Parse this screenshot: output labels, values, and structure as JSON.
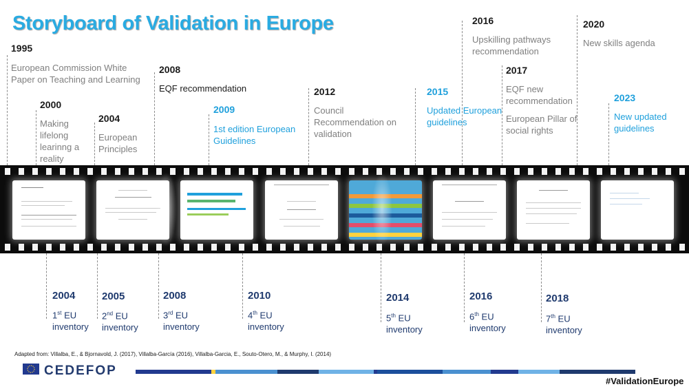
{
  "title": "Storyboard of Validation in Europe",
  "top_events": [
    {
      "year": "1995",
      "text": "European Commission White Paper on Teaching and Learning"
    },
    {
      "year": "2000",
      "text": "Making lifelong learinng a reality"
    },
    {
      "year": "2004",
      "text": "European Principles"
    },
    {
      "year": "2008",
      "text": "EQF recommendation"
    },
    {
      "year": "2009",
      "text": "1st edition European Guidelines"
    },
    {
      "year": "2012",
      "text": "Council Recommendation on validation"
    },
    {
      "year": "2015",
      "text": "Updated European guidelines"
    },
    {
      "year": "2016",
      "text": "Upskilling pathways recommendation"
    },
    {
      "year": "2017",
      "text": "EQF new recommendation",
      "text2": "European Pillar of social rights"
    },
    {
      "year": "2020",
      "text": "New skills agenda"
    },
    {
      "year": "2023",
      "text": "New updated guidelines"
    }
  ],
  "inventories": [
    {
      "year": "2004",
      "ord": "1",
      "sup": "st",
      "label": "EU",
      "line2": "inventory"
    },
    {
      "year": "2005",
      "ord": "2",
      "sup": "nd",
      "label": "EU",
      "line2": "inventory"
    },
    {
      "year": "2008",
      "ord": "3",
      "sup": "rd",
      "label": "EU",
      "line2": "inventory"
    },
    {
      "year": "2010",
      "ord": "4",
      "sup": "th",
      "label": "EU",
      "line2": "inventory"
    },
    {
      "year": "2014",
      "ord": "5",
      "sup": "th",
      "label": "EU",
      "line2": "inventory"
    },
    {
      "year": "2016",
      "ord": "6",
      "sup": "th",
      "label": "EU",
      "line2": "inventory"
    },
    {
      "year": "2018",
      "ord": "7",
      "sup": "th",
      "label": "EU",
      "line2": "inventory"
    }
  ],
  "footer": {
    "source": "Adapted from: Villalba, E., & Bjornavold, J. (2017), Villalba-García (2016), Villalba-Garcia, E., Souto-Otero, M., & Murphy, I. (2014)",
    "logo": "CEDEFOP",
    "hashtag": "#ValidationEurope"
  },
  "colors": {
    "accent": "#29abe2",
    "navy": "#1f3a6e",
    "film": "#0c0c0c"
  }
}
